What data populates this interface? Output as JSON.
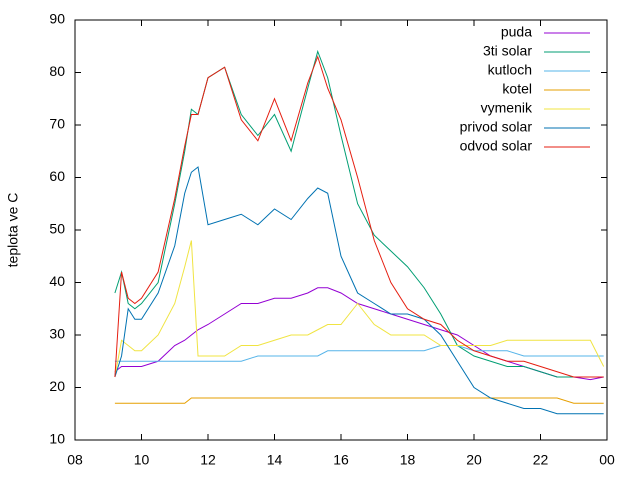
{
  "chart_data": {
    "type": "line",
    "y_label": "teplota ve C",
    "legend": "top-right",
    "xlim": [
      8,
      24
    ],
    "xticks": [
      {
        "value": 8,
        "label": "08"
      },
      10,
      12,
      14,
      16,
      18,
      20,
      22,
      {
        "value": 24,
        "label": "00"
      }
    ],
    "ylim": [
      10,
      90
    ],
    "yticks": [
      10,
      20,
      30,
      40,
      50,
      60,
      70,
      80,
      90
    ],
    "x": [
      9.2,
      9.4,
      9.6,
      9.8,
      10.0,
      10.5,
      11.0,
      11.3,
      11.5,
      11.7,
      12.0,
      12.5,
      13.0,
      13.5,
      14.0,
      14.5,
      15.0,
      15.3,
      15.6,
      16.0,
      16.5,
      17.0,
      17.5,
      18.0,
      18.5,
      19.0,
      19.5,
      20.0,
      20.5,
      21.0,
      21.5,
      22.0,
      22.5,
      23.0,
      23.5,
      23.9
    ],
    "series": [
      {
        "name": "puda",
        "color": "#9400d3",
        "values": [
          23,
          24,
          24,
          24,
          24,
          25,
          28,
          29,
          30,
          31,
          32,
          34,
          36,
          36,
          37,
          37,
          38,
          39,
          39,
          38,
          36,
          35,
          34,
          33,
          32,
          31,
          30,
          28,
          26,
          25,
          24,
          23,
          22,
          22,
          21.5,
          22
        ]
      },
      {
        "name": "3ti solar",
        "color": "#009e73",
        "values": [
          38,
          42,
          36,
          35,
          36,
          40,
          55,
          65,
          73,
          72,
          79,
          81,
          72,
          68,
          72,
          65,
          77,
          84,
          79,
          68,
          55,
          49,
          46,
          43,
          39,
          34,
          28,
          26,
          25,
          24,
          24,
          23,
          22,
          22,
          22,
          22
        ]
      },
      {
        "name": "kutloch",
        "color": "#56b4e9",
        "values": [
          25,
          25,
          25,
          25,
          25,
          25,
          25,
          25,
          25,
          25,
          25,
          25,
          25,
          26,
          26,
          26,
          26,
          26,
          27,
          27,
          27,
          27,
          27,
          27,
          27,
          28,
          28,
          27,
          27,
          27,
          26,
          26,
          26,
          26,
          26,
          26
        ]
      },
      {
        "name": "kotel",
        "color": "#e69f00",
        "values": [
          17,
          17,
          17,
          17,
          17,
          17,
          17,
          17,
          18,
          18,
          18,
          18,
          18,
          18,
          18,
          18,
          18,
          18,
          18,
          18,
          18,
          18,
          18,
          18,
          18,
          18,
          18,
          18,
          18,
          18,
          18,
          18,
          18,
          17,
          17,
          17
        ]
      },
      {
        "name": "vymenik",
        "color": "#f0e442",
        "values": [
          22,
          29,
          28,
          27,
          27,
          30,
          36,
          43,
          48,
          26,
          26,
          26,
          28,
          28,
          29,
          30,
          30,
          31,
          32,
          32,
          36,
          32,
          30,
          30,
          30,
          28,
          28,
          28,
          28,
          29,
          29,
          29,
          29,
          29,
          29,
          24
        ]
      },
      {
        "name": "privod solar",
        "color": "#0072b2",
        "values": [
          22,
          26,
          35,
          33,
          33,
          38,
          47,
          57,
          61,
          62,
          51,
          52,
          53,
          51,
          54,
          52,
          56,
          58,
          57,
          45,
          38,
          36,
          34,
          34,
          33,
          30,
          25,
          20,
          18,
          17,
          16,
          16,
          15,
          15,
          15,
          15
        ]
      },
      {
        "name": "odvod solar",
        "color": "#e51e10",
        "values": [
          22,
          42,
          37,
          36,
          37,
          42,
          56,
          66,
          72,
          72,
          79,
          81,
          71,
          67,
          75,
          67,
          78,
          83,
          77,
          71,
          60,
          48,
          40,
          35,
          33,
          32,
          29,
          27,
          26,
          25,
          25,
          24,
          23,
          22,
          22,
          22
        ]
      }
    ]
  }
}
